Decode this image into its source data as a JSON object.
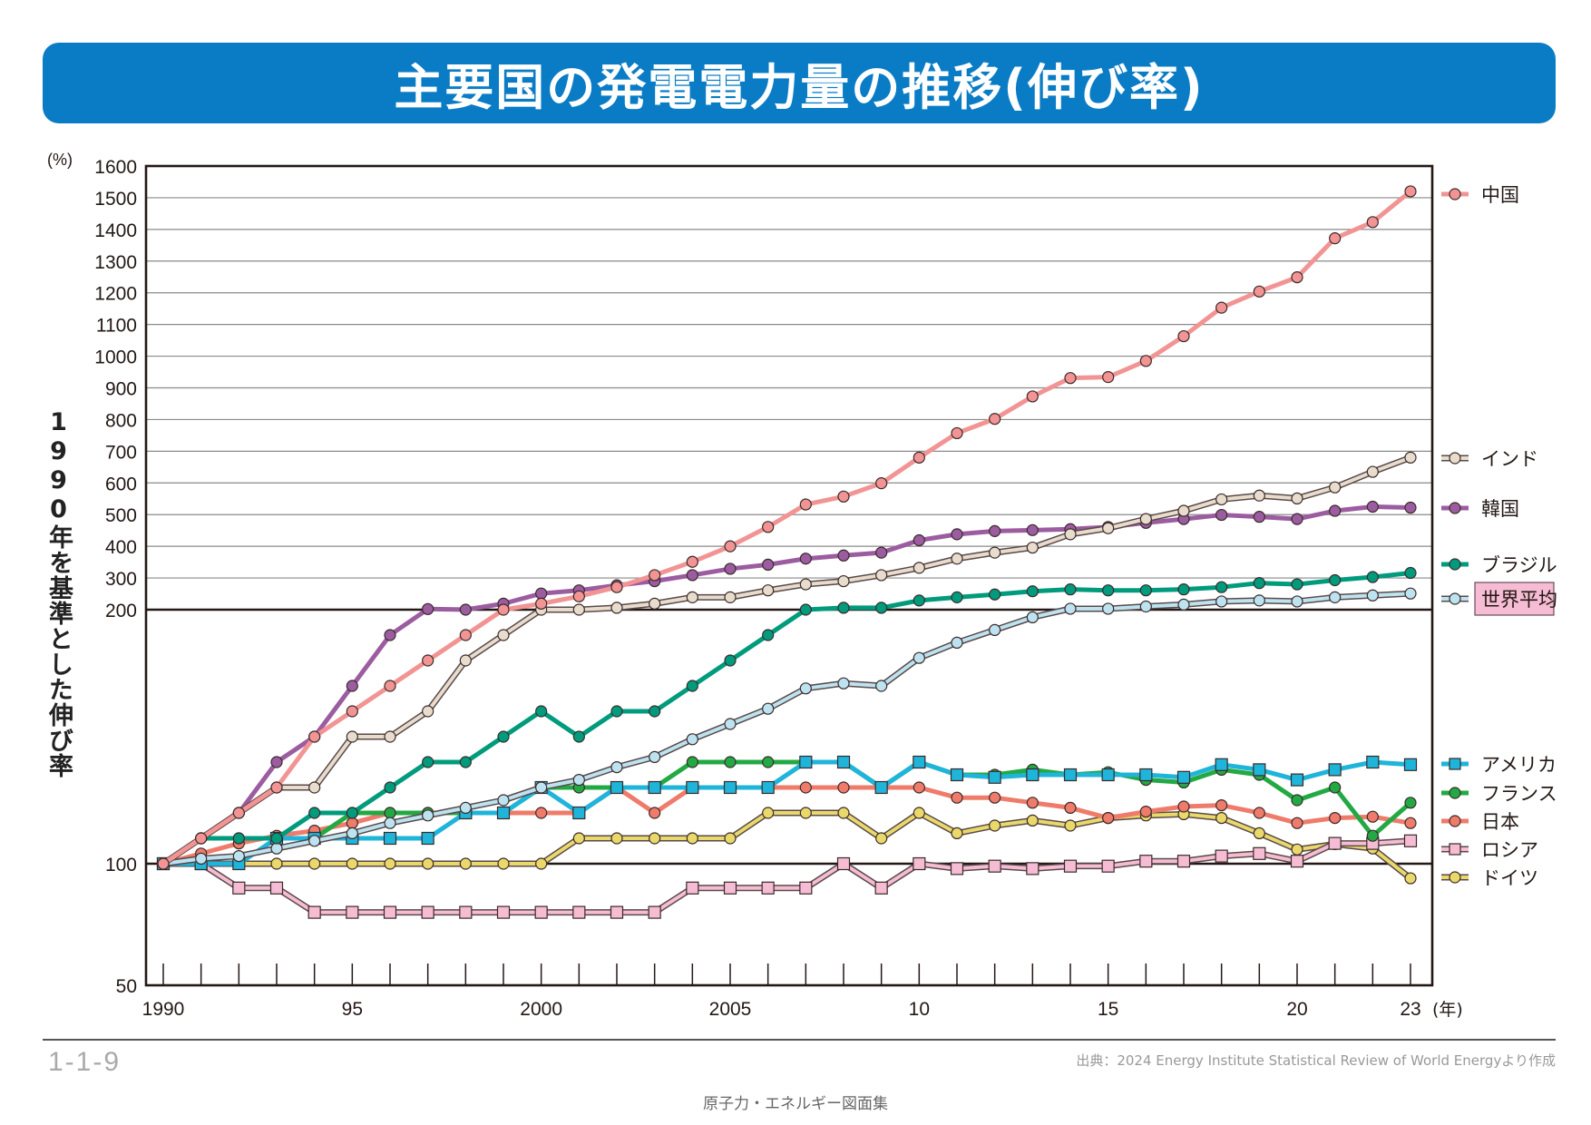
{
  "title": "主要国の発電電力量の推移(伸び率)",
  "figure_number": "1-1-9",
  "source": "出典：2024 Energy Institute Statistical Review of World Energyより作成",
  "footer": "原子力・エネルギー図面集",
  "chart_data": {
    "type": "line",
    "title": "主要国の発電電力量の推移(伸び率)",
    "ylabel": "1990年を基準とした伸び率",
    "yunit": "(%)",
    "xunit": "(年)",
    "ylim": [
      50,
      1600
    ],
    "y_scale": "piecewise: 50–200 expanded, 200–1600 compressed",
    "yticks": [
      1600,
      1500,
      1400,
      1300,
      1200,
      1100,
      1000,
      900,
      800,
      700,
      600,
      500,
      400,
      300,
      200,
      100,
      50
    ],
    "xtick_labels": [
      {
        "year": 1990,
        "label": "1990"
      },
      {
        "year": 1995,
        "label": "95"
      },
      {
        "year": 2000,
        "label": "2000"
      },
      {
        "year": 2005,
        "label": "2005"
      },
      {
        "year": 2010,
        "label": "10"
      },
      {
        "year": 2015,
        "label": "15"
      },
      {
        "year": 2020,
        "label": "20"
      },
      {
        "year": 2023,
        "label": "23"
      }
    ],
    "grid": true,
    "legend_placement": "right",
    "x": [
      1990,
      1991,
      1992,
      1993,
      1994,
      1995,
      1996,
      1997,
      1998,
      1999,
      2000,
      2001,
      2002,
      2003,
      2004,
      2005,
      2006,
      2007,
      2008,
      2009,
      2010,
      2011,
      2012,
      2013,
      2014,
      2015,
      2016,
      2017,
      2018,
      2019,
      2020,
      2021,
      2022,
      2023
    ],
    "series": [
      {
        "name": "中国",
        "color": "#f29494",
        "marker": "circle",
        "outline": false,
        "values": [
          100,
          110,
          120,
          130,
          150,
          160,
          170,
          180,
          190,
          200,
          219,
          242,
          271,
          309,
          351,
          400,
          461,
          532,
          557,
          599,
          680,
          757,
          802,
          873,
          931,
          934,
          985,
          1063,
          1153,
          1204,
          1249,
          1372,
          1423,
          1520
        ]
      },
      {
        "name": "インド",
        "color": "#e8dccd",
        "marker": "circle",
        "outline": true,
        "values": [
          100,
          110,
          120,
          130,
          130,
          150,
          150,
          160,
          180,
          190,
          200,
          200,
          206,
          219,
          239,
          239,
          261,
          280,
          290,
          309,
          332,
          361,
          380,
          396,
          438,
          457,
          486,
          512,
          548,
          560,
          551,
          586,
          635,
          680
        ]
      },
      {
        "name": "韓国",
        "color": "#9b5ca0",
        "marker": "circle",
        "outline": false,
        "values": [
          100,
          110,
          120,
          140,
          150,
          170,
          190,
          202,
          200,
          219,
          251,
          261,
          277,
          290,
          309,
          329,
          342,
          361,
          371,
          380,
          419,
          438,
          448,
          451,
          454,
          461,
          474,
          486,
          499,
          493,
          486,
          512,
          525,
          522
        ]
      },
      {
        "name": "ブラジル",
        "color": "#009b7c",
        "marker": "circle",
        "outline": false,
        "values": [
          100,
          110,
          110,
          110,
          120,
          120,
          130,
          140,
          140,
          150,
          160,
          150,
          160,
          160,
          170,
          180,
          190,
          200,
          206,
          206,
          229,
          239,
          248,
          258,
          264,
          261,
          261,
          264,
          271,
          284,
          280,
          293,
          303,
          316
        ]
      },
      {
        "name": "世界平均",
        "color": "#bde3f0",
        "marker": "circle",
        "outline": true,
        "highlight": "#f5bcd3",
        "values": [
          100,
          102,
          103,
          106,
          109,
          112,
          116,
          119,
          122,
          125,
          130,
          133,
          138,
          142,
          149,
          155,
          161,
          169,
          171,
          170,
          181,
          187,
          192,
          197,
          203,
          203,
          210,
          216,
          226,
          229,
          226,
          239,
          245,
          251
        ]
      },
      {
        "name": "アメリカ",
        "color": "#1fb4da",
        "marker": "square",
        "outline": false,
        "values": [
          100,
          100,
          100,
          110,
          110,
          110,
          110,
          110,
          120,
          120,
          130,
          120,
          130,
          130,
          130,
          130,
          130,
          140,
          140,
          130,
          140,
          135,
          134,
          135,
          135,
          135,
          135,
          134,
          139,
          137,
          133,
          137,
          140,
          139
        ]
      },
      {
        "name": "フランス",
        "color": "#23a944",
        "marker": "circle",
        "outline": false,
        "values": [
          100,
          110,
          110,
          110,
          110,
          120,
          120,
          120,
          120,
          120,
          130,
          130,
          130,
          130,
          140,
          140,
          140,
          140,
          140,
          130,
          140,
          135,
          135,
          137,
          135,
          136,
          133,
          132,
          137,
          135,
          125,
          130,
          111,
          124
        ]
      },
      {
        "name": "日本",
        "color": "#ef7b6b",
        "marker": "circle",
        "outline": false,
        "values": [
          100,
          104,
          108,
          111,
          113,
          116,
          120,
          120,
          120,
          120,
          120,
          120,
          130,
          120,
          130,
          130,
          130,
          130,
          130,
          130,
          130,
          126,
          126,
          124,
          122,
          118,
          120.5,
          122.5,
          123,
          120,
          116,
          118,
          118.5,
          116
        ]
      },
      {
        "name": "ロシア",
        "color": "#f5bcd3",
        "marker": "square",
        "outline": true,
        "values": [
          100,
          100,
          90,
          90,
          80,
          80,
          80,
          80,
          80,
          80,
          80,
          80,
          80,
          80,
          90,
          90,
          90,
          90,
          100,
          90,
          100,
          98,
          99,
          98,
          99,
          99,
          101,
          101,
          103,
          104,
          101,
          108,
          108,
          109
        ]
      },
      {
        "name": "ドイツ",
        "color": "#e9d86a",
        "marker": "circle",
        "outline": true,
        "values": [
          100,
          100,
          100,
          100,
          100,
          100,
          100,
          100,
          100,
          100,
          100,
          110,
          110,
          110,
          110,
          110,
          120,
          120,
          120,
          110,
          120,
          112,
          115,
          117,
          115,
          118,
          119,
          119.5,
          118,
          112,
          105.6,
          107.7,
          106,
          94
        ]
      }
    ]
  }
}
